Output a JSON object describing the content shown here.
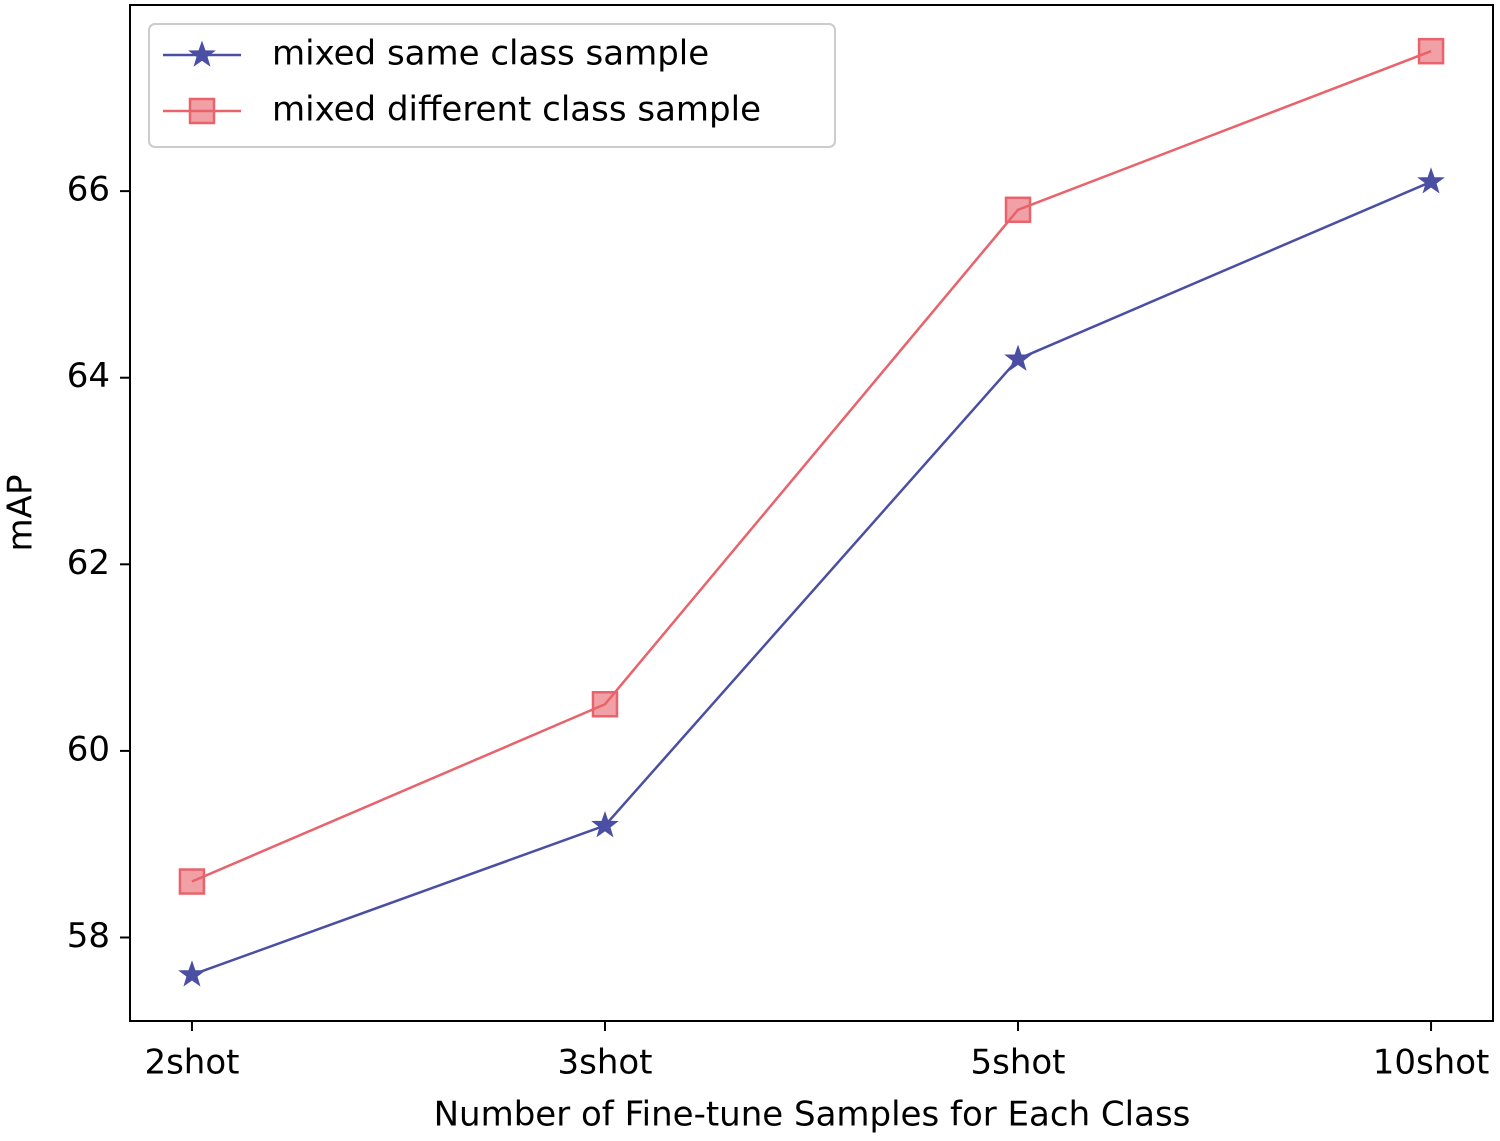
{
  "chart_data": {
    "type": "line",
    "x_label": "Number of Fine-tune Samples for Each Class",
    "y_label": "mAP",
    "categories": [
      "2shot",
      "3shot",
      "5shot",
      "10shot"
    ],
    "series": [
      {
        "name": "mixed same class sample",
        "color": "#4a4fa3",
        "marker": "star",
        "values": [
          57.6,
          59.2,
          64.2,
          66.1
        ]
      },
      {
        "name": "mixed different class sample",
        "color": "#e8636b",
        "marker": "square",
        "values": [
          58.6,
          60.5,
          65.8,
          67.5
        ]
      }
    ],
    "ylim": [
      57.105,
      67.995
    ],
    "yticks": [
      58,
      60,
      62,
      64,
      66
    ],
    "grid": false,
    "legend": "upper left"
  }
}
